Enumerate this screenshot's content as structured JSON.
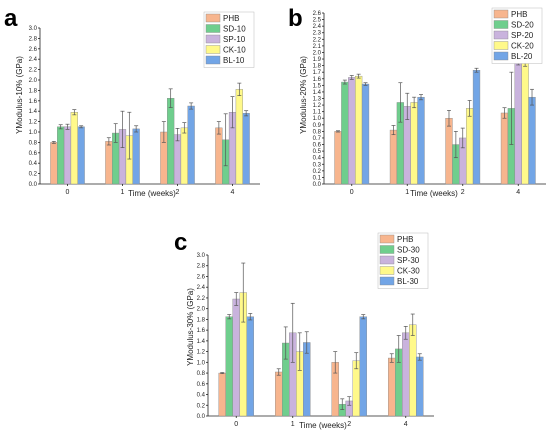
{
  "colors": {
    "PHB": "#f7b58e",
    "SD": "#6fce8d",
    "SP": "#c9b3dd",
    "CK": "#fff98a",
    "BL": "#72a5e6"
  },
  "chart_data": [
    {
      "type": "bar",
      "panel_label": "a",
      "ylabel": "YModulus-10% (GPa)",
      "xlabel": "Time (weeks)",
      "ylim": [
        0,
        3.0
      ],
      "ytick_step": 0.2,
      "categories": [
        "0",
        "1",
        "2",
        "4"
      ],
      "legend_position": "top-right",
      "series": [
        {
          "name": "PHB",
          "color_key": "PHB",
          "values": [
            0.8,
            0.82,
            1.0,
            1.08
          ],
          "errors": [
            0.02,
            0.07,
            0.2,
            0.12
          ]
        },
        {
          "name": "SD-10",
          "color_key": "SD",
          "values": [
            1.1,
            0.98,
            1.65,
            0.85
          ],
          "errors": [
            0.04,
            0.18,
            0.18,
            0.5
          ]
        },
        {
          "name": "SP-10",
          "color_key": "SP",
          "values": [
            1.1,
            1.05,
            0.95,
            1.38
          ],
          "errors": [
            0.05,
            0.35,
            0.12,
            0.3
          ]
        },
        {
          "name": "CK-10",
          "color_key": "CK",
          "values": [
            1.38,
            0.93,
            1.08,
            1.82
          ],
          "errors": [
            0.05,
            0.45,
            0.1,
            0.12
          ]
        },
        {
          "name": "BL-10",
          "color_key": "BL",
          "values": [
            1.1,
            1.06,
            1.5,
            1.36
          ],
          "errors": [
            0.02,
            0.06,
            0.06,
            0.05
          ]
        }
      ]
    },
    {
      "type": "bar",
      "panel_label": "b",
      "ylabel": "YModulus-20% (GPa)",
      "xlabel": "Time (weeks)",
      "ylim": [
        0,
        2.6
      ],
      "ytick_step": 0.1,
      "categories": [
        "0",
        "1",
        "2",
        "4"
      ],
      "legend_position": "top-right",
      "series": [
        {
          "name": "PHB",
          "color_key": "PHB",
          "values": [
            0.8,
            0.82,
            1.0,
            1.08
          ],
          "errors": [
            0.01,
            0.07,
            0.12,
            0.08
          ]
        },
        {
          "name": "SD-20",
          "color_key": "SD",
          "values": [
            1.55,
            1.24,
            0.6,
            1.15
          ],
          "errors": [
            0.03,
            0.3,
            0.2,
            0.55
          ]
        },
        {
          "name": "SP-20",
          "color_key": "SP",
          "values": [
            1.62,
            1.18,
            0.7,
            1.93
          ],
          "errors": [
            0.03,
            0.2,
            0.15,
            0.12
          ]
        },
        {
          "name": "CK-20",
          "color_key": "CK",
          "values": [
            1.64,
            1.24,
            1.15,
            1.89
          ],
          "errors": [
            0.03,
            0.08,
            0.12,
            0.1
          ]
        },
        {
          "name": "BL-20",
          "color_key": "BL",
          "values": [
            1.52,
            1.32,
            1.73,
            1.32
          ],
          "errors": [
            0.02,
            0.04,
            0.03,
            0.12
          ]
        }
      ]
    },
    {
      "type": "bar",
      "panel_label": "c",
      "ylabel": "YModulus-30% (GPa)",
      "xlabel": "Time (weeks)",
      "ylim": [
        0,
        3.0
      ],
      "ytick_step": 0.2,
      "categories": [
        "0",
        "1",
        "2",
        "4"
      ],
      "legend_position": "top-right",
      "series": [
        {
          "name": "PHB",
          "color_key": "PHB",
          "values": [
            0.8,
            0.82,
            1.0,
            1.08
          ],
          "errors": [
            0.01,
            0.06,
            0.2,
            0.08
          ]
        },
        {
          "name": "SD-30",
          "color_key": "SD",
          "values": [
            1.85,
            1.36,
            0.22,
            1.25
          ],
          "errors": [
            0.04,
            0.3,
            0.1,
            0.25
          ]
        },
        {
          "name": "SP-30",
          "color_key": "SP",
          "values": [
            2.18,
            1.55,
            0.28,
            1.55
          ],
          "errors": [
            0.12,
            0.55,
            0.08,
            0.12
          ]
        },
        {
          "name": "CK-30",
          "color_key": "CK",
          "values": [
            2.3,
            1.2,
            1.03,
            1.7
          ],
          "errors": [
            0.55,
            0.35,
            0.15,
            0.2
          ]
        },
        {
          "name": "BL-30",
          "color_key": "BL",
          "values": [
            1.85,
            1.37,
            1.85,
            1.1
          ],
          "errors": [
            0.06,
            0.2,
            0.04,
            0.06
          ]
        }
      ]
    }
  ]
}
